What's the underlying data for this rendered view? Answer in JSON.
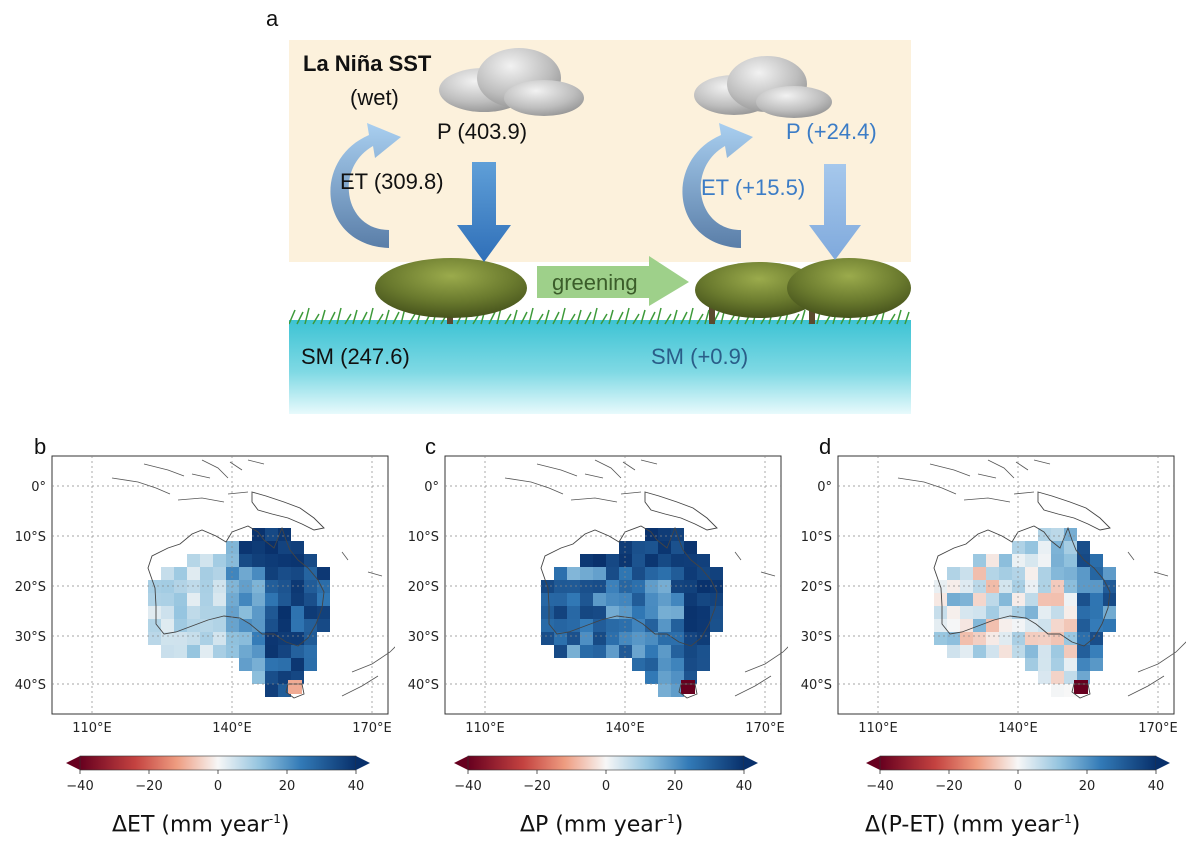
{
  "panel_labels": {
    "a": "a",
    "b": "b",
    "c": "c",
    "d": "d"
  },
  "schematic": {
    "forcing": "La Niña SST",
    "condition": "(wet)",
    "p_base": "P (403.9)",
    "et_base": "ET (309.8)",
    "sm_base": "SM (247.6)",
    "greening": "greening",
    "p_delta": "P (+24.4)",
    "et_delta": "ET (+15.5)",
    "sm_delta": "SM (+0.9)"
  },
  "maps": {
    "lat_ticks": [
      "0°",
      "10°S",
      "20°S",
      "30°S",
      "40°S"
    ],
    "lon_ticks": [
      "110°E",
      "140°E",
      "170°E"
    ],
    "colorbar_ticks": [
      "−40",
      "−20",
      "0",
      "20",
      "40"
    ],
    "colorbar_range": [
      -40,
      40
    ],
    "panels": [
      {
        "title_main": "ΔET (mm year",
        "title_sup": "-1",
        "title_end": ")"
      },
      {
        "title_main": "ΔP (mm year",
        "title_sup": "-1",
        "title_end": ")"
      },
      {
        "title_main": "Δ(P-ET) (mm year",
        "title_sup": "-1",
        "title_end": ")"
      }
    ]
  },
  "colors": {
    "cream": "#fcf1dc",
    "water": "#4cc6d6",
    "arrow_dark": "#3d7fc4",
    "arrow_light": "#8fb8e6",
    "green_arrow": "#9ed08a",
    "delta_text": "#3b7cc6"
  }
}
